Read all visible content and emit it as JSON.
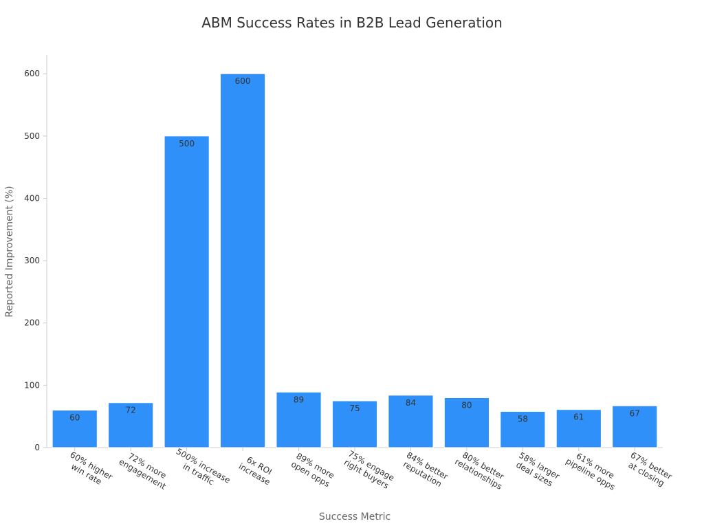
{
  "chart_data": {
    "type": "bar",
    "title": "ABM Success Rates in B2B Lead Generation",
    "x_label": "Success Metric",
    "y_label": "Reported Improvement (%)",
    "categories": [
      "60% higher\nwin rate",
      "72% more\nengagement",
      "500% increase\nin traffic",
      "6x ROI\nincrease",
      "89% more\nopen opps",
      "75% engage\nright buyers",
      "84% better\nreputation",
      "80% better\nrelationships",
      "58% larger\ndeal sizes",
      "61% more\npipeline opps",
      "67% better\nat closing"
    ],
    "values": [
      60,
      72,
      500,
      600,
      89,
      75,
      84,
      80,
      58,
      61,
      67
    ],
    "color": "#2e90f8",
    "ylim": [
      0,
      630
    ],
    "yticks": [
      0,
      100,
      200,
      300,
      400,
      500,
      600
    ],
    "grid": false
  }
}
